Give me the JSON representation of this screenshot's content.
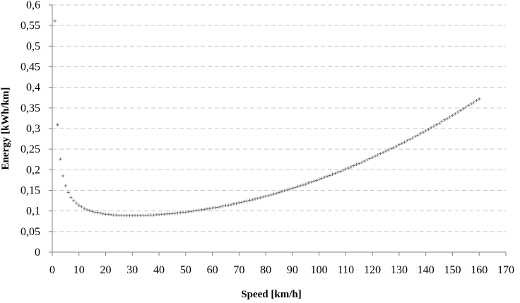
{
  "chart_data": {
    "type": "scatter",
    "title": "",
    "xlabel": "Speed [km/h]",
    "ylabel": "Energy  [kWh/km]",
    "xlim": [
      0,
      170
    ],
    "ylim": [
      0,
      0.6
    ],
    "x_ticks": [
      "0",
      "10",
      "20",
      "30",
      "40",
      "50",
      "60",
      "70",
      "80",
      "90",
      "100",
      "110",
      "120",
      "130",
      "140",
      "150",
      "160",
      "170"
    ],
    "y_ticks": [
      "0",
      "0,05",
      "0,1",
      "0,15",
      "0,2",
      "0,25",
      "0,3",
      "0,35",
      "0,4",
      "0,45",
      "0,5",
      "0,55",
      "0,6"
    ],
    "grid": "horizontal-dashed",
    "legend": "none",
    "marker": "plus",
    "series": [
      {
        "x": [
          1,
          2,
          3,
          4,
          5,
          6,
          7,
          8,
          9,
          10,
          11,
          12,
          13,
          14,
          15,
          16,
          17,
          18,
          19,
          20,
          21,
          22,
          23,
          24,
          25,
          26,
          27,
          28,
          29,
          30,
          31,
          32,
          33,
          34,
          35,
          36,
          37,
          38,
          39,
          40,
          41,
          42,
          43,
          44,
          45,
          46,
          47,
          48,
          49,
          50,
          51,
          52,
          53,
          54,
          55,
          56,
          57,
          58,
          59,
          60,
          61,
          62,
          63,
          64,
          65,
          66,
          67,
          68,
          69,
          70,
          71,
          72,
          73,
          74,
          75,
          76,
          77,
          78,
          79,
          80,
          81,
          82,
          83,
          84,
          85,
          86,
          87,
          88,
          89,
          90,
          91,
          92,
          93,
          94,
          95,
          96,
          97,
          98,
          99,
          100,
          101,
          102,
          103,
          104,
          105,
          106,
          107,
          108,
          109,
          110,
          111,
          112,
          113,
          114,
          115,
          116,
          117,
          118,
          119,
          120,
          121,
          122,
          123,
          124,
          125,
          126,
          127,
          128,
          129,
          130,
          131,
          132,
          133,
          134,
          135,
          136,
          137,
          138,
          139,
          140,
          141,
          142,
          143,
          144,
          145,
          146,
          147,
          148,
          149,
          150,
          151,
          152,
          153,
          154,
          155,
          156,
          157,
          158,
          159,
          160
        ],
        "y": [
          0.561,
          0.309,
          0.226,
          0.185,
          0.161,
          0.145,
          0.133,
          0.125,
          0.119,
          0.114,
          0.11,
          0.106,
          0.103,
          0.101,
          0.099,
          0.097,
          0.096,
          0.095,
          0.093,
          0.092,
          0.092,
          0.091,
          0.09,
          0.09,
          0.089,
          0.089,
          0.089,
          0.089,
          0.089,
          0.089,
          0.089,
          0.089,
          0.089,
          0.089,
          0.089,
          0.09,
          0.09,
          0.09,
          0.091,
          0.091,
          0.092,
          0.092,
          0.093,
          0.093,
          0.094,
          0.094,
          0.095,
          0.096,
          0.097,
          0.097,
          0.098,
          0.099,
          0.1,
          0.101,
          0.102,
          0.103,
          0.104,
          0.105,
          0.106,
          0.107,
          0.108,
          0.109,
          0.11,
          0.112,
          0.113,
          0.114,
          0.115,
          0.117,
          0.118,
          0.12,
          0.121,
          0.123,
          0.124,
          0.126,
          0.127,
          0.129,
          0.13,
          0.132,
          0.134,
          0.136,
          0.137,
          0.139,
          0.141,
          0.143,
          0.145,
          0.147,
          0.149,
          0.151,
          0.153,
          0.155,
          0.157,
          0.159,
          0.161,
          0.163,
          0.165,
          0.168,
          0.17,
          0.172,
          0.174,
          0.177,
          0.179,
          0.182,
          0.184,
          0.186,
          0.189,
          0.191,
          0.194,
          0.196,
          0.199,
          0.202,
          0.204,
          0.207,
          0.21,
          0.213,
          0.215,
          0.218,
          0.221,
          0.224,
          0.227,
          0.23,
          0.233,
          0.236,
          0.239,
          0.242,
          0.245,
          0.248,
          0.251,
          0.254,
          0.257,
          0.261,
          0.264,
          0.267,
          0.271,
          0.274,
          0.277,
          0.281,
          0.284,
          0.288,
          0.291,
          0.295,
          0.298,
          0.302,
          0.306,
          0.309,
          0.313,
          0.317,
          0.321,
          0.324,
          0.328,
          0.332,
          0.336,
          0.34,
          0.344,
          0.348,
          0.352,
          0.356,
          0.36,
          0.364,
          0.368,
          0.372
        ]
      }
    ]
  }
}
